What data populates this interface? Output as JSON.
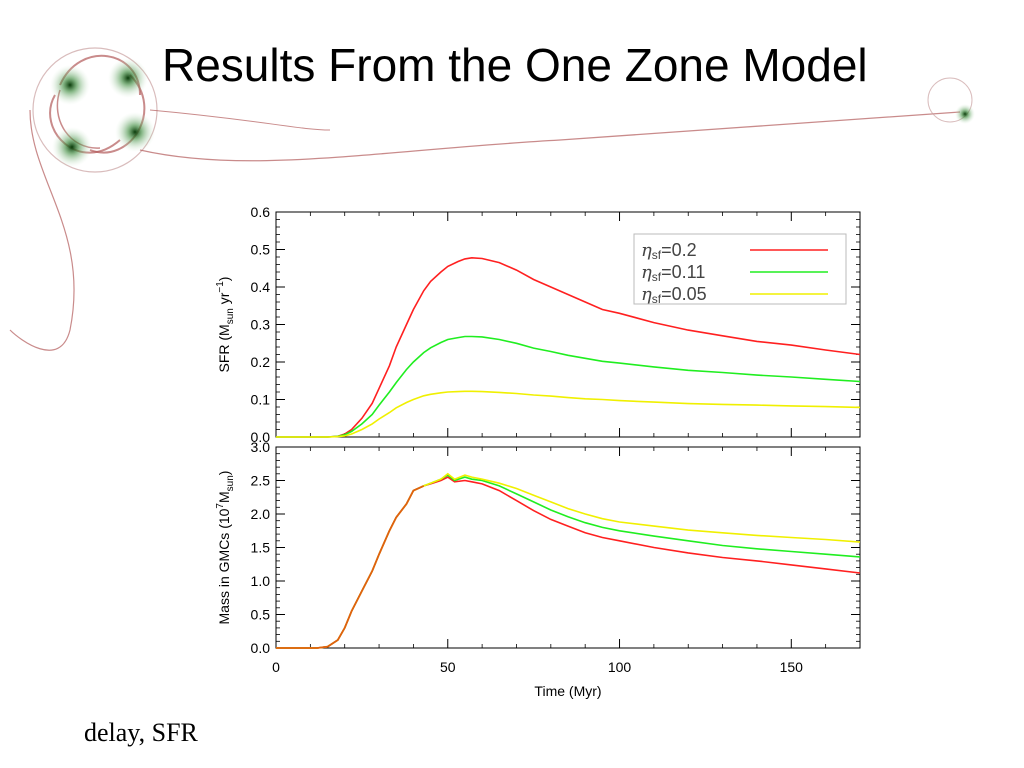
{
  "slide": {
    "title": "Results From the One Zone Model",
    "caption": "delay, SFR"
  },
  "chart_data": [
    {
      "type": "line",
      "panel": "top",
      "title": "",
      "xlabel": "",
      "ylabel": "SFR (M_sun yr^-1)",
      "ylabel_parts": {
        "main": "SFR (M",
        "sub": "sun",
        "mid": " yr",
        "sup": "−1",
        "end": ")"
      },
      "xlim": [
        0,
        170
      ],
      "ylim": [
        0,
        0.6
      ],
      "yticks": [
        "0.0",
        "0.1",
        "0.2",
        "0.3",
        "0.4",
        "0.5",
        "0.6"
      ],
      "legend_position": "top-right",
      "series": [
        {
          "name": "η_sf=0.2",
          "label_eta": "η",
          "label_sub": "sf",
          "label_val": "=0.2",
          "color": "#ff2020",
          "x": [
            0,
            10,
            15,
            18,
            20,
            22,
            25,
            28,
            30,
            33,
            35,
            38,
            40,
            43,
            45,
            48,
            50,
            53,
            55,
            57,
            60,
            65,
            70,
            75,
            80,
            85,
            90,
            95,
            100,
            110,
            120,
            130,
            140,
            150,
            160,
            170
          ],
          "y": [
            0,
            0,
            0,
            0.002,
            0.008,
            0.02,
            0.05,
            0.09,
            0.13,
            0.19,
            0.24,
            0.3,
            0.34,
            0.39,
            0.415,
            0.44,
            0.455,
            0.468,
            0.475,
            0.478,
            0.476,
            0.465,
            0.445,
            0.42,
            0.4,
            0.38,
            0.36,
            0.34,
            0.33,
            0.305,
            0.285,
            0.27,
            0.255,
            0.245,
            0.232,
            0.22
          ]
        },
        {
          "name": "η_sf=0.11",
          "label_eta": "η",
          "label_sub": "sf",
          "label_val": "=0.11",
          "color": "#20ee20",
          "x": [
            0,
            10,
            15,
            18,
            20,
            22,
            25,
            28,
            30,
            33,
            35,
            38,
            40,
            43,
            45,
            48,
            50,
            53,
            55,
            57,
            60,
            65,
            70,
            75,
            80,
            85,
            90,
            95,
            100,
            110,
            120,
            130,
            140,
            150,
            160,
            170
          ],
          "y": [
            0,
            0,
            0,
            0.002,
            0.006,
            0.015,
            0.035,
            0.06,
            0.085,
            0.12,
            0.145,
            0.18,
            0.2,
            0.225,
            0.238,
            0.252,
            0.26,
            0.265,
            0.268,
            0.268,
            0.267,
            0.26,
            0.25,
            0.237,
            0.228,
            0.218,
            0.21,
            0.202,
            0.197,
            0.187,
            0.178,
            0.172,
            0.165,
            0.16,
            0.154,
            0.148
          ]
        },
        {
          "name": "η_sf=0.05",
          "label_eta": "η",
          "label_sub": "sf",
          "label_val": "=0.05",
          "color": "#f0f000",
          "x": [
            0,
            10,
            15,
            18,
            20,
            22,
            25,
            28,
            30,
            33,
            35,
            38,
            40,
            43,
            45,
            48,
            50,
            53,
            55,
            57,
            60,
            65,
            70,
            75,
            80,
            85,
            90,
            95,
            100,
            110,
            120,
            130,
            140,
            150,
            160,
            170
          ],
          "y": [
            0,
            0,
            0,
            0.001,
            0.003,
            0.008,
            0.02,
            0.035,
            0.048,
            0.065,
            0.078,
            0.092,
            0.1,
            0.11,
            0.114,
            0.118,
            0.12,
            0.121,
            0.122,
            0.122,
            0.121,
            0.119,
            0.116,
            0.112,
            0.109,
            0.105,
            0.102,
            0.1,
            0.097,
            0.093,
            0.089,
            0.087,
            0.085,
            0.083,
            0.081,
            0.079
          ]
        }
      ]
    },
    {
      "type": "line",
      "panel": "bottom",
      "title": "",
      "xlabel": "Time (Myr)",
      "ylabel": "Mass in GMCs (10^7 M_sun)",
      "ylabel_parts": {
        "main": "Mass in GMCs (10",
        "sup": "7",
        "mid": "M",
        "sub": "sun",
        "end": ")"
      },
      "xlim": [
        0,
        170
      ],
      "ylim": [
        0,
        3.0
      ],
      "xticks": [
        0,
        50,
        100,
        150
      ],
      "yticks": [
        "0.0",
        "0.5",
        "1.0",
        "1.5",
        "2.0",
        "2.5",
        "3.0"
      ],
      "series": [
        {
          "name": "η_sf=0.2",
          "color": "#ff2020",
          "x": [
            0,
            12,
            15,
            18,
            20,
            22,
            25,
            28,
            30,
            33,
            35,
            38,
            40,
            43,
            45,
            48,
            50,
            52,
            55,
            57,
            60,
            65,
            70,
            75,
            80,
            85,
            90,
            95,
            100,
            110,
            120,
            130,
            140,
            150,
            160,
            170
          ],
          "y": [
            0,
            0,
            0.02,
            0.12,
            0.3,
            0.55,
            0.85,
            1.15,
            1.4,
            1.75,
            1.95,
            2.15,
            2.35,
            2.42,
            2.45,
            2.5,
            2.55,
            2.48,
            2.5,
            2.48,
            2.45,
            2.35,
            2.2,
            2.05,
            1.92,
            1.82,
            1.72,
            1.65,
            1.6,
            1.5,
            1.42,
            1.35,
            1.3,
            1.24,
            1.18,
            1.12
          ]
        },
        {
          "name": "η_sf=0.11",
          "color": "#20ee20",
          "x": [
            0,
            12,
            15,
            18,
            20,
            22,
            25,
            28,
            30,
            33,
            35,
            38,
            40,
            43,
            45,
            48,
            50,
            52,
            55,
            57,
            60,
            65,
            70,
            75,
            80,
            85,
            90,
            95,
            100,
            110,
            120,
            130,
            140,
            150,
            160,
            170
          ],
          "y": [
            0,
            0,
            0.02,
            0.12,
            0.3,
            0.55,
            0.85,
            1.15,
            1.4,
            1.75,
            1.95,
            2.15,
            2.35,
            2.42,
            2.46,
            2.52,
            2.58,
            2.5,
            2.55,
            2.52,
            2.5,
            2.42,
            2.3,
            2.18,
            2.06,
            1.96,
            1.87,
            1.8,
            1.75,
            1.67,
            1.6,
            1.53,
            1.48,
            1.44,
            1.4,
            1.36
          ]
        },
        {
          "name": "η_sf=0.05",
          "color": "#f0f000",
          "x": [
            0,
            12,
            15,
            18,
            20,
            22,
            25,
            28,
            30,
            33,
            35,
            38,
            40,
            43,
            45,
            48,
            50,
            52,
            55,
            57,
            60,
            65,
            70,
            75,
            80,
            85,
            90,
            95,
            100,
            110,
            120,
            130,
            140,
            150,
            160,
            170
          ],
          "y": [
            0,
            0,
            0.02,
            0.12,
            0.3,
            0.55,
            0.85,
            1.15,
            1.4,
            1.75,
            1.95,
            2.15,
            2.35,
            2.42,
            2.46,
            2.52,
            2.6,
            2.52,
            2.58,
            2.55,
            2.52,
            2.46,
            2.38,
            2.28,
            2.18,
            2.08,
            2.0,
            1.93,
            1.88,
            1.82,
            1.76,
            1.72,
            1.68,
            1.65,
            1.62,
            1.58
          ]
        }
      ]
    }
  ]
}
